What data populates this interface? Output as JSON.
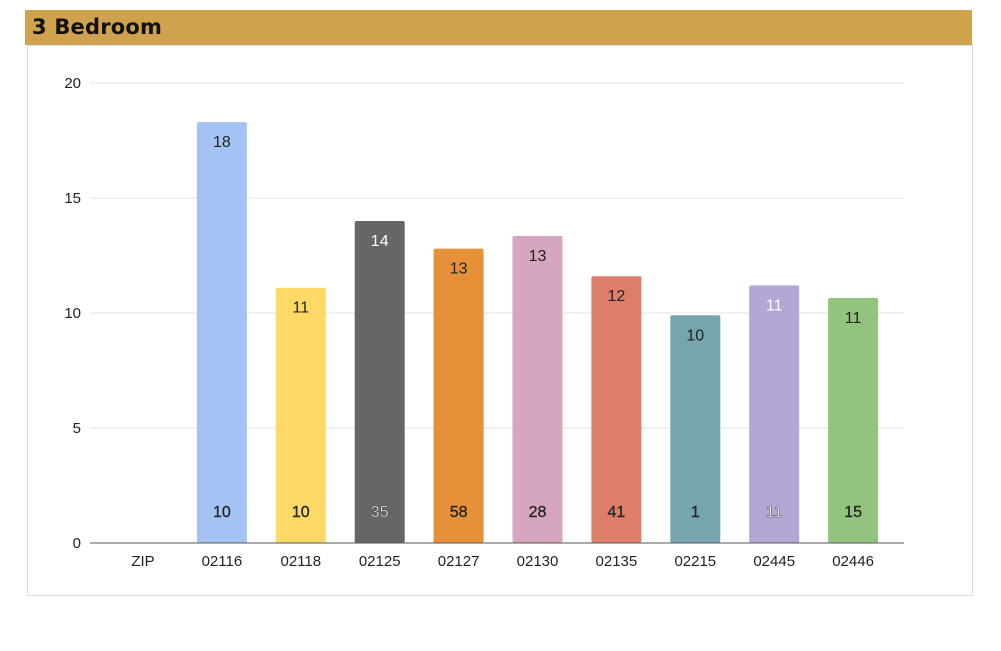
{
  "header": {
    "title": "3 Bedroom"
  },
  "colors": {
    "header_bg": "#cfa24e",
    "grid": "#e3e3e3",
    "axis": "#555555"
  },
  "chart_data": {
    "type": "bar",
    "title": "3 Bedroom",
    "xlabel": "",
    "ylabel": "",
    "ylim": [
      0,
      20
    ],
    "yticks": [
      0,
      5,
      10,
      15,
      20
    ],
    "grid": true,
    "categories": [
      "ZIP",
      "02116",
      "02118",
      "02125",
      "02127",
      "02130",
      "02135",
      "02215",
      "02445",
      "02446"
    ],
    "values": [
      null,
      18.3,
      11.1,
      14.0,
      12.8,
      13.35,
      11.6,
      9.9,
      11.2,
      10.65
    ],
    "top_labels": [
      "",
      "18",
      "11",
      "14",
      "13",
      "13",
      "12",
      "10",
      "11",
      "11"
    ],
    "bottom_labels": [
      "",
      "10",
      "10",
      "35",
      "58",
      "28",
      "41",
      "1",
      "11",
      "15"
    ],
    "bar_colors": [
      "",
      "#a4c2f4",
      "#ffd966",
      "#666666",
      "#e69138",
      "#d5a6bd",
      "#dd7e6b",
      "#76a5af",
      "#b4a7d6",
      "#93c47d"
    ],
    "label_colors": [
      "",
      "#222222",
      "#222222",
      "#ffffff",
      "#222222",
      "#222222",
      "#222222",
      "#222222",
      "#ffffff",
      "#222222"
    ]
  }
}
